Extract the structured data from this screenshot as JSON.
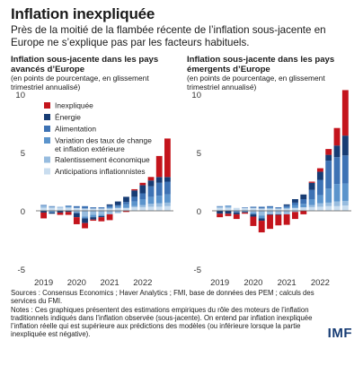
{
  "header": {
    "title": "Inflation inexpliquée",
    "subtitle": "Près de la moitié de la flambée récente de l’inflation sous-jacente en Europe ne s’explique pas par les facteurs habituels."
  },
  "colors": {
    "Inexpliquée": "#c4141c",
    "Énergie": "#173c74",
    "Alimentation": "#3d72b4",
    "Variation des taux de change et inflation extérieure": "#5b94cc",
    "Ralentissement économique": "#97bcdf",
    "Anticipations inflationnistes": "#c9ddef"
  },
  "notes": {
    "sources": "Sources : Consensus Economics ; Haver Analytics ; FMI, base de données des PEM ; calculs des services du FMI.",
    "notes": "Notes : Ces graphiques présentent des estimations empiriques du rôle des moteurs de l’inflation traditionnels indiqués dans l’inflation observée (sous-jacente). On entend par inflation inexpliquée l’inflation réelle qui est supérieure aux prédictions des modèles (ou inférieure lorsque la partie inexpliquée est négative)."
  },
  "logo": "IMF",
  "chart_data": [
    {
      "type": "bar",
      "stacked": true,
      "title": "Inflation sous-jacente dans les pays avancés d’Europe",
      "subtitle": "(en points de pourcentage, en glissement trimestriel annualisé)",
      "ylim": [
        -5,
        10
      ],
      "yticks": [
        -5,
        0,
        5,
        10
      ],
      "xtick_labels": [
        "2019",
        "2020",
        "2021",
        "2022"
      ],
      "legend_position": "top-left",
      "categories": [
        "2019T1",
        "2019T2",
        "2019T3",
        "2019T4",
        "2020T1",
        "2020T2",
        "2020T3",
        "2020T4",
        "2021T1",
        "2021T2",
        "2021T3",
        "2021T4",
        "2022T1",
        "2022T2",
        "2022T3",
        "2022T4"
      ],
      "series": [
        {
          "name": "Anticipations inflationnistes",
          "values": [
            0.25,
            0.25,
            0.25,
            0.25,
            0.25,
            0.2,
            0.2,
            0.2,
            0.2,
            0.25,
            0.25,
            0.3,
            0.3,
            0.35,
            0.35,
            0.4
          ]
        },
        {
          "name": "Ralentissement économique",
          "values": [
            0.15,
            0.1,
            0.1,
            0.05,
            -0.1,
            -0.5,
            -0.35,
            -0.35,
            -0.3,
            -0.2,
            0.0,
            0.1,
            0.2,
            0.25,
            0.3,
            0.3
          ]
        },
        {
          "name": "Variation des taux de change et inflation extérieure",
          "values": [
            0.05,
            -0.15,
            0.0,
            0.1,
            -0.1,
            -0.15,
            -0.2,
            -0.1,
            0.1,
            0.15,
            0.3,
            0.4,
            0.5,
            0.6,
            0.65,
            0.7
          ]
        },
        {
          "name": "Alimentation",
          "values": [
            0.05,
            0.05,
            0.0,
            0.05,
            0.15,
            0.2,
            0.1,
            0.1,
            0.15,
            0.1,
            0.2,
            0.4,
            0.5,
            0.9,
            1.1,
            1.1
          ]
        },
        {
          "name": "Énergie",
          "values": [
            -0.15,
            -0.1,
            -0.15,
            -0.1,
            -0.35,
            -0.4,
            -0.2,
            -0.1,
            0.1,
            0.3,
            0.45,
            0.55,
            0.7,
            0.5,
            0.5,
            0.4
          ]
        },
        {
          "name": "Inexpliquée",
          "values": [
            -0.5,
            0.0,
            -0.2,
            -0.25,
            -0.6,
            -0.45,
            -0.1,
            -0.35,
            -0.5,
            0.0,
            -0.1,
            0.1,
            0.2,
            0.3,
            1.8,
            3.3
          ]
        }
      ]
    },
    {
      "type": "bar",
      "stacked": true,
      "title": "Inflation sous-jacente dans les pays émergents d’Europe",
      "subtitle": "(en points de pourcentage, en glissement trimestriel annualisé)",
      "ylim": [
        -5,
        10
      ],
      "yticks": [
        -5,
        0,
        5,
        10
      ],
      "xtick_labels": [
        "2019",
        "2020",
        "2021",
        "2022"
      ],
      "categories": [
        "2019T1",
        "2019T2",
        "2019T3",
        "2019T4",
        "2020T1",
        "2020T2",
        "2020T3",
        "2020T4",
        "2021T1",
        "2021T2",
        "2021T3",
        "2021T4",
        "2022T1",
        "2022T2",
        "2022T3",
        "2022T4"
      ],
      "series": [
        {
          "name": "Anticipations inflationnistes",
          "values": [
            0.25,
            0.25,
            0.25,
            0.25,
            0.25,
            0.2,
            0.2,
            0.2,
            0.2,
            0.25,
            0.3,
            0.3,
            0.35,
            0.4,
            0.4,
            0.45
          ]
        },
        {
          "name": "Ralentissement économique",
          "values": [
            0.1,
            0.1,
            0.0,
            0.0,
            -0.15,
            -0.4,
            -0.3,
            -0.3,
            -0.3,
            -0.1,
            0.0,
            0.2,
            0.3,
            0.3,
            0.4,
            0.4
          ]
        },
        {
          "name": "Variation des taux de change et inflation extérieure",
          "values": [
            0.0,
            0.1,
            -0.1,
            -0.1,
            -0.15,
            -0.25,
            0.1,
            0.0,
            0.1,
            0.25,
            0.3,
            0.5,
            0.7,
            1.2,
            1.5,
            1.5
          ]
        },
        {
          "name": "Alimentation",
          "values": [
            0.05,
            0.0,
            -0.05,
            0.05,
            0.1,
            0.15,
            0.1,
            0.1,
            0.15,
            0.2,
            0.4,
            0.8,
            1.3,
            2.4,
            2.3,
            2.4
          ]
        },
        {
          "name": "Énergie",
          "values": [
            -0.25,
            -0.25,
            -0.15,
            -0.05,
            -0.2,
            -0.2,
            -0.05,
            -0.05,
            0.1,
            0.3,
            0.4,
            0.6,
            0.7,
            0.5,
            1.0,
            1.7
          ]
        },
        {
          "name": "Inexpliquée",
          "values": [
            -0.3,
            -0.2,
            -0.4,
            -0.1,
            -0.8,
            -1.0,
            -1.2,
            -0.9,
            -0.9,
            -0.6,
            -0.3,
            0.1,
            0.3,
            0.5,
            1.5,
            3.9
          ]
        }
      ]
    }
  ]
}
